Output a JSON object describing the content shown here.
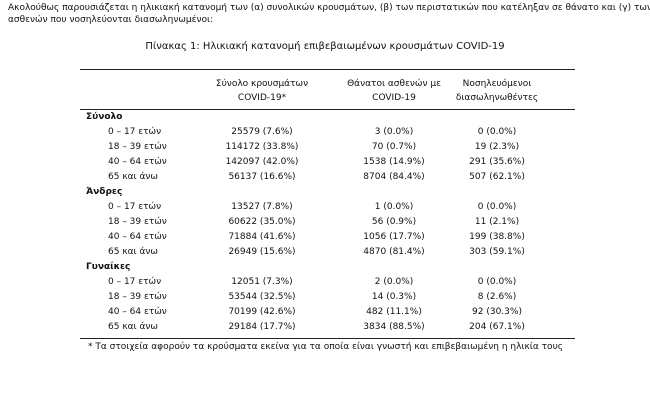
{
  "intro": [
    "Ακολούθως παρουσιάζεται η ηλικιακή κατανομή των (α) συνολικών κρουσμάτων, (β) των περιστατικών που κατέληξαν σε θάνατο και (γ) των",
    "ασθενών που νοσηλεύονται διασωληνωμένοι:"
  ],
  "table": {
    "caption": "Πίνακας 1: Ηλικιακή κατανομή επιβεβαιωμένων κρουσμάτων COVID-19",
    "header": [
      [
        "Σύνολο κρουσμάτων",
        "COVID-19*"
      ],
      [
        "Θάνατοι ασθενών με",
        "COVID-19"
      ],
      [
        "Νοσηλευόμενοι",
        "διασωληνωθέντες"
      ]
    ],
    "groups": [
      {
        "name": "Σύνολο",
        "rows": [
          [
            "0 – 17 ετών",
            "25579 (7.6%)",
            "3 (0.0%)",
            "0 (0.0%)"
          ],
          [
            "18 – 39 ετών",
            "114172 (33.8%)",
            "70 (0.7%)",
            "19 (2.3%)"
          ],
          [
            "40 – 64 ετών",
            "142097 (42.0%)",
            "1538 (14.9%)",
            "291 (35.6%)"
          ],
          [
            "65 και άνω",
            "56137 (16.6%)",
            "8704 (84.4%)",
            "507 (62.1%)"
          ]
        ]
      },
      {
        "name": "Άνδρες",
        "rows": [
          [
            "0 – 17 ετών",
            "13527 (7.8%)",
            "1 (0.0%)",
            "0 (0.0%)"
          ],
          [
            "18 – 39 ετών",
            "60622 (35.0%)",
            "56 (0.9%)",
            "11 (2.1%)"
          ],
          [
            "40 – 64 ετών",
            "71884 (41.6%)",
            "1056 (17.7%)",
            "199 (38.8%)"
          ],
          [
            "65 και άνω",
            "26949 (15.6%)",
            "4870 (81.4%)",
            "303 (59.1%)"
          ]
        ]
      },
      {
        "name": "Γυναίκες",
        "rows": [
          [
            "0 – 17 ετών",
            "12051 (7.3%)",
            "2 (0.0%)",
            "0 (0.0%)"
          ],
          [
            "18 – 39 ετών",
            "53544 (32.5%)",
            "14 (0.3%)",
            "8 (2.6%)"
          ],
          [
            "40 – 64 ετών",
            "70199 (42.6%)",
            "482 (11.1%)",
            "92 (30.3%)"
          ],
          [
            "65 και άνω",
            "29184 (17.7%)",
            "3834 (88.5%)",
            "204 (67.1%)"
          ]
        ]
      }
    ],
    "footnote": "* Τα στοιχεία αφορούν τα κρούσματα εκείνα για τα οποία είναι γνωστή και επιβεβαιωμένη η ηλικία τους"
  }
}
